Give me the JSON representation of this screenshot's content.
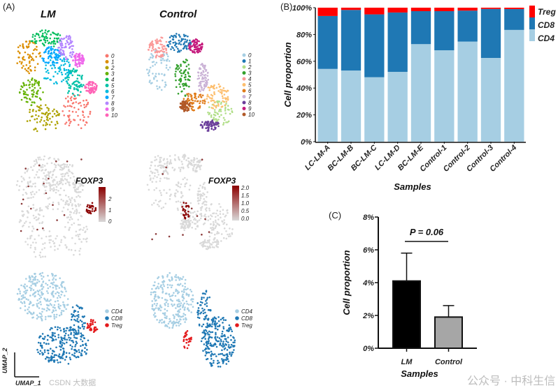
{
  "panel_labels": {
    "a": "(A)",
    "b": "(B)",
    "c": "(C)"
  },
  "watermark": {
    "left": "CSDN 大数据",
    "right": "公众号 · 中科生信"
  },
  "chart_data": [
    {
      "type": "scatter",
      "id": "umap",
      "titles": {
        "lm": "LM",
        "control": "Control"
      },
      "xlabel": "UMAP_1",
      "ylabel": "UMAP_2",
      "cluster_legend": [
        "0",
        "1",
        "2",
        "3",
        "4",
        "5",
        "6",
        "7",
        "8",
        "9",
        "10"
      ],
      "lm_cluster_colors": [
        "#F8766D",
        "#DB8E00",
        "#AEA200",
        "#64B200",
        "#00BD5C",
        "#00C1A7",
        "#00BADE",
        "#00A6FF",
        "#B385FF",
        "#EF67EB",
        "#FF63B6"
      ],
      "control_cluster_colors": [
        "#A6CEE3",
        "#1F78B4",
        "#B2DF8A",
        "#33A02C",
        "#FB9A99",
        "#FDBF6F",
        "#E07B1A",
        "#CAB2D6",
        "#6A3D9A",
        "#C51B7D",
        "#B15928"
      ],
      "feature": "FOXP3",
      "lm_colorbar_ticks": [
        "2",
        "1",
        "0"
      ],
      "control_colorbar_ticks": [
        "2.0",
        "1.5",
        "1.0",
        "0.5",
        "0.0"
      ],
      "feature_colors": {
        "low": "#d9d9d9",
        "high": "#8b0000"
      },
      "celltype_legend": [
        "CD4",
        "CD8",
        "Treg"
      ],
      "celltype_colors": {
        "CD4": "#A6CEE3",
        "CD8": "#1F78B4",
        "Treg": "#E31A1C"
      }
    },
    {
      "type": "bar",
      "id": "stacked",
      "stacked": true,
      "categories": [
        "LC-LM-A",
        "BC-LM-B",
        "BC-LM-C",
        "LC-LM-D",
        "BC-LM-E",
        "Control-1",
        "Control-2",
        "Control-3",
        "Control-4"
      ],
      "series": [
        {
          "name": "CD4",
          "color": "#A6CEE3",
          "values": [
            54.3,
            53.1,
            48.1,
            52.1,
            72.8,
            68.2,
            74.7,
            62.5,
            83.4
          ]
        },
        {
          "name": "CD8",
          "color": "#1F78B4",
          "values": [
            39.5,
            45.2,
            46.9,
            44.3,
            24.6,
            29.2,
            23.1,
            36.6,
            15.6
          ]
        },
        {
          "name": "Treg",
          "color": "#FF0000",
          "values": [
            6.2,
            1.7,
            5.0,
            3.6,
            2.6,
            2.6,
            2.2,
            0.9,
            1.0
          ]
        }
      ],
      "legend_order": [
        "Treg",
        "CD8",
        "CD4"
      ],
      "ylim": [
        0,
        100
      ],
      "yticks": [
        "0%",
        "20%",
        "40%",
        "60%",
        "80%",
        "100%"
      ],
      "xlabel": "Samples",
      "ylabel": "Cell proportion",
      "legend": "right"
    },
    {
      "type": "bar",
      "id": "treg",
      "categories": [
        "LM",
        "Control"
      ],
      "values": [
        4.1,
        1.9
      ],
      "error_upper": [
        5.8,
        2.6
      ],
      "colors": [
        "#000000",
        "#a6a6a6"
      ],
      "ylim": [
        0,
        8
      ],
      "yticks": [
        "0%",
        "2%",
        "4%",
        "6%",
        "8%"
      ],
      "xlabel": "Samples",
      "ylabel": "Cell proportion",
      "annotation": "P = 0.06"
    }
  ]
}
